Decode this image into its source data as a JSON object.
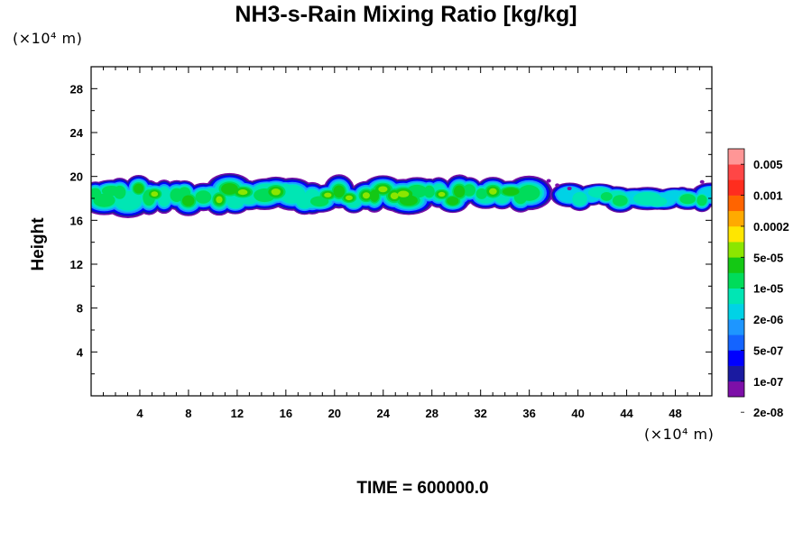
{
  "chart_data": {
    "type": "heatmap",
    "title": "NH3-s-Rain Mixing Ratio [kg/kg]",
    "xlabel": "",
    "ylabel": "Height",
    "x_unit_label": "(×10⁴ m)",
    "y_unit_label": "(×10⁴ m)",
    "footer": "TIME = 600000.0",
    "xlim": [
      0,
      51
    ],
    "ylim": [
      0,
      30
    ],
    "x_ticks": [
      4,
      8,
      12,
      16,
      20,
      24,
      28,
      32,
      36,
      40,
      44,
      48
    ],
    "y_ticks": [
      4,
      8,
      12,
      16,
      20,
      24,
      28
    ],
    "colorbar": {
      "labels": [
        "0.005",
        "0.001",
        "0.0002",
        "5e-05",
        "1e-05",
        "2e-06",
        "5e-07",
        "1e-07",
        "2e-08"
      ],
      "colors_bottom_to_top": [
        "#7d0fa8",
        "#1a1aa0",
        "#0000ff",
        "#1464ff",
        "#1e96ff",
        "#00d2e6",
        "#00e6b4",
        "#00dc5a",
        "#14c814",
        "#8ce600",
        "#ffe600",
        "#ffaa00",
        "#ff6400",
        "#ff2d1e",
        "#ff4646",
        "#ff9696"
      ]
    },
    "band_description_y_range": [
      16.5,
      20
    ],
    "cloud_segments": [
      {
        "x_start": 0.0,
        "x_end": 36.5,
        "y_bottom": 16.5,
        "y_top": 20.0,
        "max_level": "5e-05"
      },
      {
        "x_start": 38.5,
        "x_end": 51.0,
        "y_bottom": 16.8,
        "y_top": 19.3,
        "max_level": "1e-05"
      }
    ]
  }
}
